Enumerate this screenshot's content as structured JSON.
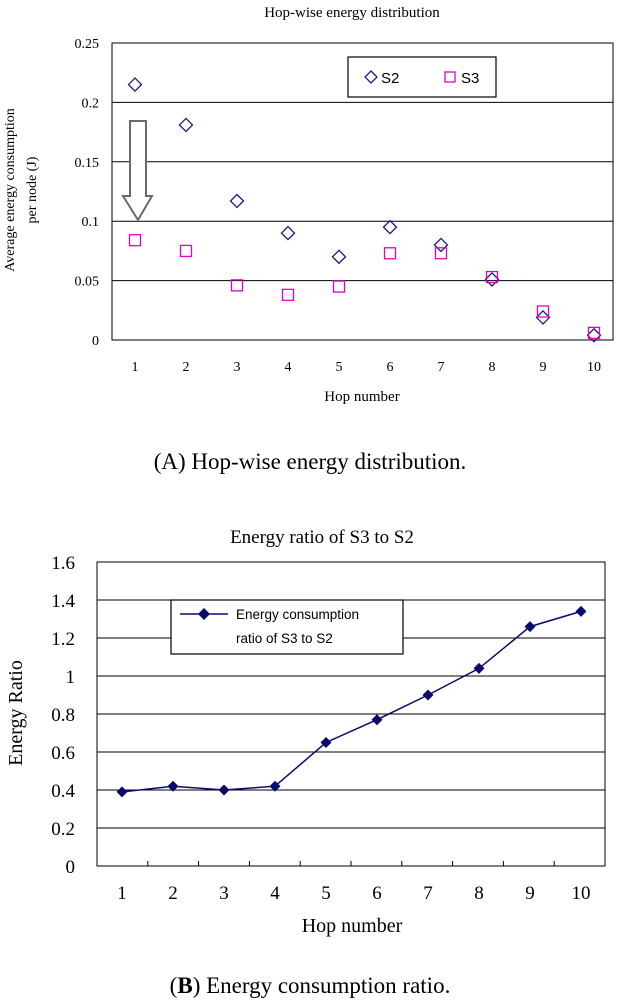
{
  "chart_data": [
    {
      "type": "scatter",
      "title": "Hop-wise energy distribution",
      "xlabel": "Hop number",
      "ylabel": "Average energy consumption per node (J)",
      "ylabel_lines": [
        "Average energy consumption",
        "per node (J)"
      ],
      "ylim": [
        0,
        0.25
      ],
      "yticks": [
        "0",
        "0.05",
        "0.1",
        "0.15",
        "0.2",
        "0.25"
      ],
      "x": [
        1,
        2,
        3,
        4,
        5,
        6,
        7,
        8,
        9,
        10
      ],
      "xticks": [
        "1",
        "2",
        "3",
        "4",
        "5",
        "6",
        "7",
        "8",
        "9",
        "10"
      ],
      "grid": true,
      "legend_position": "top-right",
      "series": [
        {
          "name": "S2",
          "marker": "diamond",
          "color": "#1a1a8c",
          "values": [
            0.215,
            0.181,
            0.117,
            0.09,
            0.07,
            0.095,
            0.08,
            0.051,
            0.019,
            0.004
          ]
        },
        {
          "name": "S3",
          "marker": "square",
          "color": "#e000c8",
          "values": [
            0.084,
            0.075,
            0.046,
            0.038,
            0.045,
            0.073,
            0.073,
            0.053,
            0.024,
            0.006
          ]
        }
      ],
      "annotation": "arrow pointing down at hop 1",
      "caption": "(A) Hop-wise energy distribution."
    },
    {
      "type": "line",
      "title": "Energy ratio of S3 to S2",
      "xlabel": "Hop number",
      "ylabel": "Energy Ratio",
      "ylim": [
        0,
        1.6
      ],
      "yticks": [
        "0",
        "0.2",
        "0.4",
        "0.6",
        "0.8",
        "1",
        "1.2",
        "1.4",
        "1.6"
      ],
      "x": [
        1,
        2,
        3,
        4,
        5,
        6,
        7,
        8,
        9,
        10
      ],
      "xticks": [
        "1",
        "2",
        "3",
        "4",
        "5",
        "6",
        "7",
        "8",
        "9",
        "10"
      ],
      "grid": true,
      "legend_position": "top-left",
      "series": [
        {
          "name": "Energy consumption ratio of S3 to S2",
          "legend_lines": [
            "Energy consumption",
            "ratio of S3 to S2"
          ],
          "marker": "diamond",
          "color": "#0a0a6e",
          "values": [
            0.39,
            0.42,
            0.4,
            0.42,
            0.65,
            0.77,
            0.9,
            1.04,
            1.26,
            1.34
          ]
        }
      ],
      "caption_bold": "B",
      "caption_prefix": "(",
      "caption_rest": ") Energy consumption ratio."
    }
  ]
}
